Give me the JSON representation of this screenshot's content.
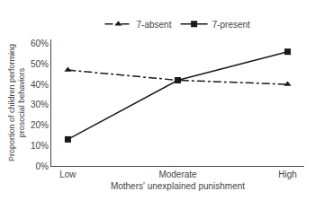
{
  "chart_data": {
    "type": "line",
    "categories": [
      "Low",
      "Moderate",
      "High"
    ],
    "series": [
      {
        "name": "7-absent",
        "color": "#1a1a1a",
        "marker": "triangle",
        "line_style": "dashdot",
        "values": [
          47,
          42,
          40
        ]
      },
      {
        "name": "7-present",
        "color": "#1a1a1a",
        "marker": "square",
        "line_style": "solid",
        "values": [
          13,
          42,
          56
        ]
      }
    ],
    "xlabel": "Mothers' unexplained punishment",
    "ylabel": "Proportion of children performing\nprosocial behaviors",
    "ylim": [
      0,
      62
    ],
    "yticks": [
      {
        "value": 0,
        "label": "0%"
      },
      {
        "value": 10,
        "label": "10%"
      },
      {
        "value": 20,
        "label": "20%"
      },
      {
        "value": 30,
        "label": "30%"
      },
      {
        "value": 40,
        "label": "40%"
      },
      {
        "value": 50,
        "label": "50%"
      },
      {
        "value": 60,
        "label": "60%"
      }
    ],
    "grid": false,
    "legend": "top"
  }
}
